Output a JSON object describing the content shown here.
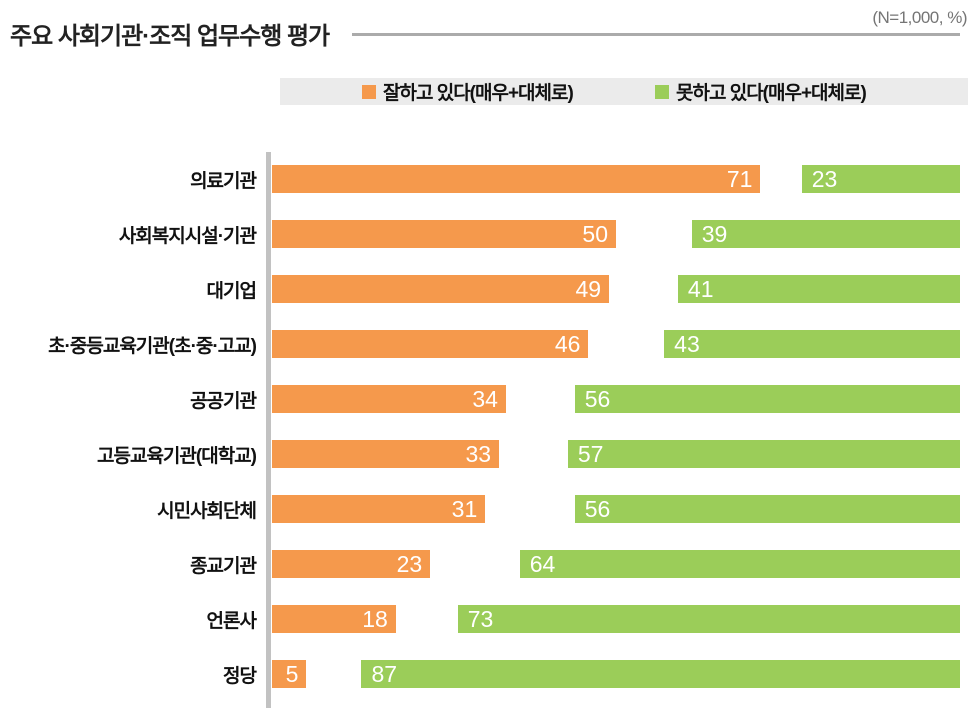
{
  "title": "주요 사회기관·조직 업무수행 평가",
  "note": "(N=1,000, %)",
  "colors": {
    "positive": "#f5994c",
    "negative": "#9bcd59",
    "legend_band": "#ebebeb",
    "axis_line": "#c2c2c2",
    "title_rule": "#ababab",
    "value_label_text": "#ffffff"
  },
  "legend": [
    {
      "label": "잘하고 있다(매우+대체로)",
      "color": "#f5994c"
    },
    {
      "label": "못하고 있다(매우+대체로)",
      "color": "#9bcd59"
    }
  ],
  "chart_data": {
    "type": "bar",
    "orientation": "horizontal",
    "title": "주요 사회기관·조직 업무수행 평가",
    "subtitle": "(N=1,000, %)",
    "categories": [
      "의료기관",
      "사회복지시설·기관",
      "대기업",
      "초·중등교육기관(초·중·고교)",
      "공공기관",
      "고등교육기관(대학교)",
      "시민사회단체",
      "종교기관",
      "언론사",
      "정당"
    ],
    "series": [
      {
        "name": "잘하고 있다(매우+대체로)",
        "color": "#f5994c",
        "anchor": "left",
        "values": [
          71,
          50,
          49,
          46,
          34,
          33,
          31,
          23,
          18,
          5
        ]
      },
      {
        "name": "못하고 있다(매우+대체로)",
        "color": "#9bcd59",
        "anchor": "right",
        "values": [
          23,
          39,
          41,
          43,
          56,
          57,
          56,
          64,
          73,
          87
        ]
      }
    ],
    "xlim": [
      0,
      100
    ],
    "unit": "%",
    "grid": false,
    "legend_position": "top",
    "value_labels": "inside"
  }
}
